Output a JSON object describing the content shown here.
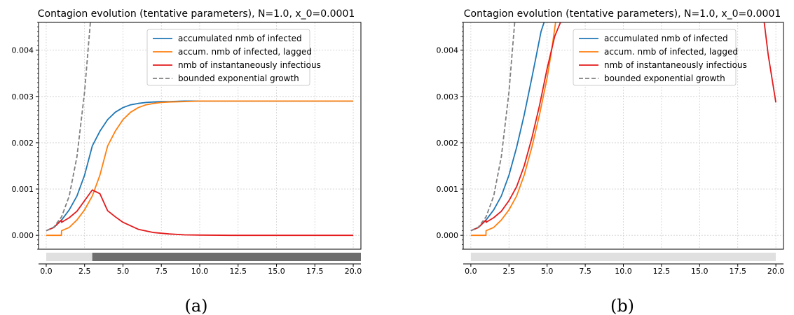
{
  "chart_data": [
    {
      "type": "line",
      "title": "Contagion evolution (tentative parameters), N=1.0, x_0=0.0001",
      "caption": "(a)",
      "xlim": [
        -0.5,
        20.5
      ],
      "ylim": [
        -0.0003,
        0.0046
      ],
      "xticks": [
        0.0,
        2.5,
        5.0,
        7.5,
        10.0,
        12.5,
        15.0,
        17.5,
        20.0
      ],
      "xtick_labels": [
        "0.0",
        "2.5",
        "5.0",
        "7.5",
        "10.0",
        "12.5",
        "15.0",
        "17.5",
        "20.0"
      ],
      "yticks": [
        0.0,
        0.001,
        0.002,
        0.003,
        0.004
      ],
      "ytick_labels": [
        "0.000",
        "0.001",
        "0.002",
        "0.003",
        "0.004"
      ],
      "grid": true,
      "legend_position": "top-right",
      "series": [
        {
          "name": "accumulated nmb of infected",
          "color": "#1f77b4",
          "dash": false,
          "x": [
            0,
            0.5,
            1,
            1.5,
            2,
            2.5,
            3,
            3.5,
            4,
            4.5,
            5,
            5.5,
            6,
            6.5,
            7,
            7.5,
            8,
            9,
            10,
            11,
            12,
            14,
            16,
            18,
            20
          ],
          "y": [
            0.0001,
            0.00017,
            0.00033,
            0.00055,
            0.00085,
            0.0013,
            0.00193,
            0.00225,
            0.0025,
            0.00266,
            0.00276,
            0.00282,
            0.00285,
            0.00287,
            0.00288,
            0.00289,
            0.00289,
            0.0029,
            0.0029,
            0.0029,
            0.0029,
            0.0029,
            0.0029,
            0.0029,
            0.0029
          ]
        },
        {
          "name": "accum. nmb of infected, lagged",
          "color": "#ff7f0e",
          "dash": false,
          "x": [
            0,
            0.5,
            0.99,
            1,
            1.5,
            2,
            2.5,
            3,
            3.5,
            4,
            4.5,
            5,
            5.5,
            6,
            6.5,
            7,
            7.5,
            8,
            9,
            10,
            11,
            12,
            14,
            16,
            18,
            20
          ],
          "y": [
            0,
            0,
            0,
            0.0001,
            0.00017,
            0.00033,
            0.00055,
            0.00085,
            0.0013,
            0.00193,
            0.00225,
            0.0025,
            0.00266,
            0.00276,
            0.00282,
            0.00285,
            0.00287,
            0.00288,
            0.00289,
            0.0029,
            0.0029,
            0.0029,
            0.0029,
            0.0029,
            0.0029,
            0.0029
          ]
        },
        {
          "name": "nmb of instantaneously infectious",
          "color": "#e31a1c",
          "dash": false,
          "x": [
            0,
            0.5,
            0.99,
            1,
            1.5,
            2,
            2.5,
            3,
            3.5,
            4,
            4.5,
            5,
            6,
            7,
            8,
            9,
            10,
            12,
            15,
            20
          ],
          "y": [
            0.0001,
            0.00017,
            0.00033,
            0.00028,
            0.00038,
            0.00052,
            0.00075,
            0.00098,
            0.0009,
            0.00053,
            0.0004,
            0.00028,
            0.00013,
            6e-05,
            3e-05,
            1e-05,
            5e-06,
            0,
            0,
            0
          ]
        },
        {
          "name": "bounded exponential growth",
          "color": "#808080",
          "dash": true,
          "x": [
            0,
            0.5,
            1,
            1.5,
            2,
            2.5,
            2.7,
            2.9
          ],
          "y": [
            0.0001,
            0.00018,
            0.0004,
            0.00085,
            0.0017,
            0.0031,
            0.0039,
            0.0047
          ]
        }
      ],
      "timeline": {
        "x_start": 0,
        "x_end": 20,
        "light_color": "#e0e0e0",
        "dark_start": 3.0,
        "dark_color": "#6e6e6e"
      }
    },
    {
      "type": "line",
      "title": "Contagion evolution (tentative parameters), N=1.0, x_0=0.0001",
      "caption": "(b)",
      "xlim": [
        -0.5,
        20.5
      ],
      "ylim": [
        -0.0003,
        0.0046
      ],
      "xticks": [
        0.0,
        2.5,
        5.0,
        7.5,
        10.0,
        12.5,
        15.0,
        17.5,
        20.0
      ],
      "xtick_labels": [
        "0.0",
        "2.5",
        "5.0",
        "7.5",
        "10.0",
        "12.5",
        "15.0",
        "17.5",
        "20.0"
      ],
      "yticks": [
        0.0,
        0.001,
        0.002,
        0.003,
        0.004
      ],
      "ytick_labels": [
        "0.000",
        "0.001",
        "0.002",
        "0.003",
        "0.004"
      ],
      "grid": true,
      "legend_position": "top-right",
      "series": [
        {
          "name": "accumulated nmb of infected",
          "color": "#1f77b4",
          "dash": false,
          "x": [
            0,
            0.5,
            1,
            1.5,
            2,
            2.5,
            3,
            3.5,
            4,
            4.3,
            4.6,
            4.9
          ],
          "y": [
            0.0001,
            0.00017,
            0.00033,
            0.00055,
            0.00085,
            0.0013,
            0.0019,
            0.0026,
            0.0034,
            0.0039,
            0.0044,
            0.0047
          ]
        },
        {
          "name": "accum. nmb of infected, lagged",
          "color": "#ff7f0e",
          "dash": false,
          "x": [
            0,
            0.5,
            0.99,
            1,
            1.5,
            2,
            2.5,
            3,
            3.5,
            4,
            4.5,
            5,
            5.3,
            5.6
          ],
          "y": [
            0,
            0,
            0,
            0.0001,
            0.00017,
            0.00033,
            0.00055,
            0.00085,
            0.0013,
            0.0019,
            0.0026,
            0.0034,
            0.004,
            0.0047
          ]
        },
        {
          "name": "nmb of instantaneously infectious",
          "color": "#e31a1c",
          "dash": false,
          "x": [
            0,
            0.5,
            0.99,
            1,
            1.5,
            2,
            2.5,
            3,
            3.5,
            4,
            4.5,
            5,
            5.5,
            6.0,
            19.2,
            19.5,
            20
          ],
          "y": [
            0.0001,
            0.00017,
            0.00033,
            0.00028,
            0.00038,
            0.00052,
            0.00075,
            0.00105,
            0.0015,
            0.0021,
            0.0028,
            0.0036,
            0.0043,
            0.0047,
            0.0047,
            0.0039,
            0.00287
          ]
        },
        {
          "name": "bounded exponential growth",
          "color": "#808080",
          "dash": true,
          "x": [
            0,
            0.5,
            1,
            1.5,
            2,
            2.5,
            2.7,
            2.9
          ],
          "y": [
            0.0001,
            0.00018,
            0.0004,
            0.00085,
            0.0017,
            0.0031,
            0.0039,
            0.0047
          ]
        }
      ],
      "gap_after_x": 6.0,
      "timeline": {
        "x_start": 0,
        "x_end": 20,
        "light_color": "#e0e0e0",
        "dark_start": null,
        "dark_color": "#6e6e6e"
      }
    }
  ]
}
